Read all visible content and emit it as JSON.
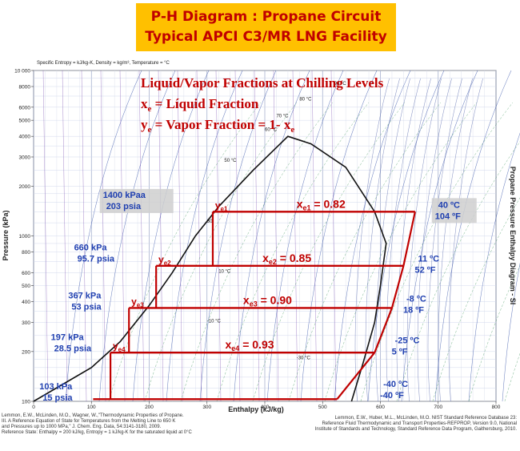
{
  "banner": {
    "line1": "P-H Diagram : Propane Circuit",
    "line2": "Typical APCI C3/MR LNG Facility",
    "bg_color": "#ffc000",
    "text_color": "#c00000"
  },
  "chart_header": "Specific Entropy = kJ/kg-K, Density = kg/m³, Temperature = °C",
  "overlay": {
    "title": "Liquid/Vapor Fractions at Chilling Levels",
    "line_xe_sym": "x",
    "line_xe_sub": "e",
    "line_xe_rest": " = Líquid Fraction",
    "line_ye_sym": "y",
    "line_ye_sub": "e",
    "line_ye_mid": " = Vapor Fraction = 1- x",
    "line_ye_sub2": "e",
    "color": "#c00000"
  },
  "chart_data": {
    "type": "diagram",
    "xlabel": "Enthalpy (kJ/kg)",
    "ylabel": "Pressure (kPa)",
    "right_label": "Propane Pressure Enthalpy Diagram - SI",
    "x_ticks": [
      0,
      100,
      200,
      300,
      400,
      500,
      600,
      700,
      800
    ],
    "y_ticks": [
      100,
      200,
      300,
      400,
      500,
      600,
      800,
      1000,
      2000,
      3000,
      4000,
      5000,
      6000,
      8000,
      10000
    ],
    "y_tick_labels": [
      "100",
      "200",
      "300",
      "400",
      "500",
      "600",
      "800",
      "1000",
      "2000",
      "3000",
      "4000",
      "5000",
      "6000",
      "8000",
      "10 000"
    ],
    "xlim": [
      0,
      800
    ],
    "ylim": [
      100,
      10000
    ],
    "y_scale": "log",
    "grid": true,
    "dome": {
      "liquid": [
        [
          0,
          100
        ],
        [
          100,
          160
        ],
        [
          150,
          230
        ],
        [
          200,
          380
        ],
        [
          240,
          600
        ],
        [
          280,
          1000
        ],
        [
          320,
          1500
        ],
        [
          380,
          2500
        ],
        [
          440,
          4000
        ]
      ],
      "vapor": [
        [
          440,
          4000
        ],
        [
          480,
          3600
        ],
        [
          540,
          2600
        ],
        [
          590,
          1400
        ],
        [
          610,
          900
        ],
        [
          600,
          500
        ],
        [
          590,
          300
        ],
        [
          570,
          170
        ],
        [
          550,
          100
        ]
      ]
    },
    "levels": [
      {
        "pressure_kpa": 1400,
        "h_liq": 310,
        "h_right": 660,
        "p_label": "1400 kPaa",
        "p_label2": "203 psia",
        "t_label": "40 ºC",
        "t_label2": "104 ºF",
        "y_sym": "y",
        "y_sub": "e1",
        "x_sym": "x",
        "x_sub": "e1",
        "x_val": " = 0.82"
      },
      {
        "pressure_kpa": 660,
        "h_liq": 212,
        "h_right": 640,
        "p_label": "660 kPa",
        "p_label2": "95.7 psia",
        "t_label": "11 ºC",
        "t_label2": "52 ºF",
        "y_sym": "y",
        "y_sub": "e2",
        "x_sym": "x",
        "x_sub": "e2",
        "x_val": " = 0.85"
      },
      {
        "pressure_kpa": 367,
        "h_liq": 165,
        "h_right": 620,
        "p_label": "367 kPa",
        "p_label2": "53 psia",
        "t_label": "-8 ºC",
        "t_label2": "18 ºF",
        "y_sym": "y",
        "y_sub": "e3",
        "x_sym": "x",
        "x_sub": "e3",
        "x_val": " = 0.90"
      },
      {
        "pressure_kpa": 197,
        "h_liq": 133,
        "h_right": 590,
        "p_label": "197 kPa",
        "p_label2": "28.5 psia",
        "t_label": "-25 ºC",
        "t_label2": "5 ºF",
        "y_sym": "y",
        "y_sub": "e4",
        "x_sym": "x",
        "x_sub": "e4",
        "x_val": " = 0.93"
      },
      {
        "pressure_kpa": 103,
        "h_liq": 103,
        "h_right": 525,
        "p_label": "103 kPa",
        "p_label2": "15 psia",
        "t_label": "-40 ºC",
        "t_label2": "-40 ºF"
      }
    ],
    "isotherm_labels": [
      "90 °C",
      "80 °C",
      "70 °C",
      "60 °C",
      "50 °C",
      "30",
      "10 °C",
      "-10 °C",
      "-30 °C"
    ]
  },
  "source_left": [
    "Lemmon, E.W., McLinden, M.O., Wagner, W.,\"Thermodynamic Properties of Propane.",
    "III. A Reference Equation of State for Temperatures from the Melting Line to 650 K",
    "and Pressures up to 1000 MPa,\" J. Chem. Eng. Data, 54:3141-3180, 2009.",
    "Reference State: Enthalpy = 200 kJ/kg, Entropy = 1 kJ/kg-K for the saturated liquid at 0°C"
  ],
  "source_right": [
    "Lemmon, E.W., Huber, M.L., McLinden, M.O.  NIST Standard Reference Database 23:",
    "Reference Fluid Thermodynamic and Transport Properties-REFPROP, Version 9.0, National",
    "Institute of Standards and Technology, Standard Reference Data Program, Gaithersburg, 2010."
  ]
}
